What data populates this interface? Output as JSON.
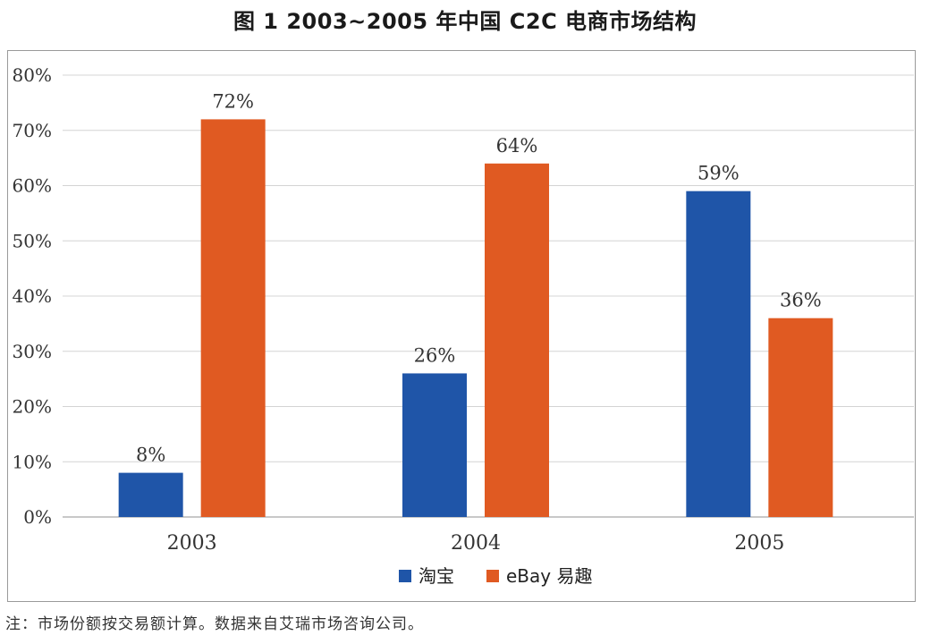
{
  "chart_data": {
    "type": "bar",
    "title": "图 1  2003~2005 年中国 C2C 电商市场结构",
    "categories": [
      "2003",
      "2004",
      "2005"
    ],
    "series": [
      {
        "name": "淘宝",
        "color": "#1f55a8",
        "values": [
          8,
          26,
          59
        ],
        "labels": [
          "8%",
          "26%",
          "59%"
        ]
      },
      {
        "name": "eBay 易趣",
        "color": "#e05a22",
        "values": [
          72,
          64,
          36
        ],
        "labels": [
          "72%",
          "64%",
          "36%"
        ]
      }
    ],
    "ylim": [
      0,
      80
    ],
    "yticks": [
      0,
      10,
      20,
      30,
      40,
      50,
      60,
      70,
      80
    ],
    "ytick_labels": [
      "0%",
      "10%",
      "20%",
      "30%",
      "40%",
      "50%",
      "60%",
      "70%",
      "80%"
    ],
    "xlabel": "",
    "ylabel": "",
    "grid": true,
    "legend": "bottom-center"
  },
  "note": "注：市场份额按交易额计算。数据来自艾瑞市场咨询公司。"
}
